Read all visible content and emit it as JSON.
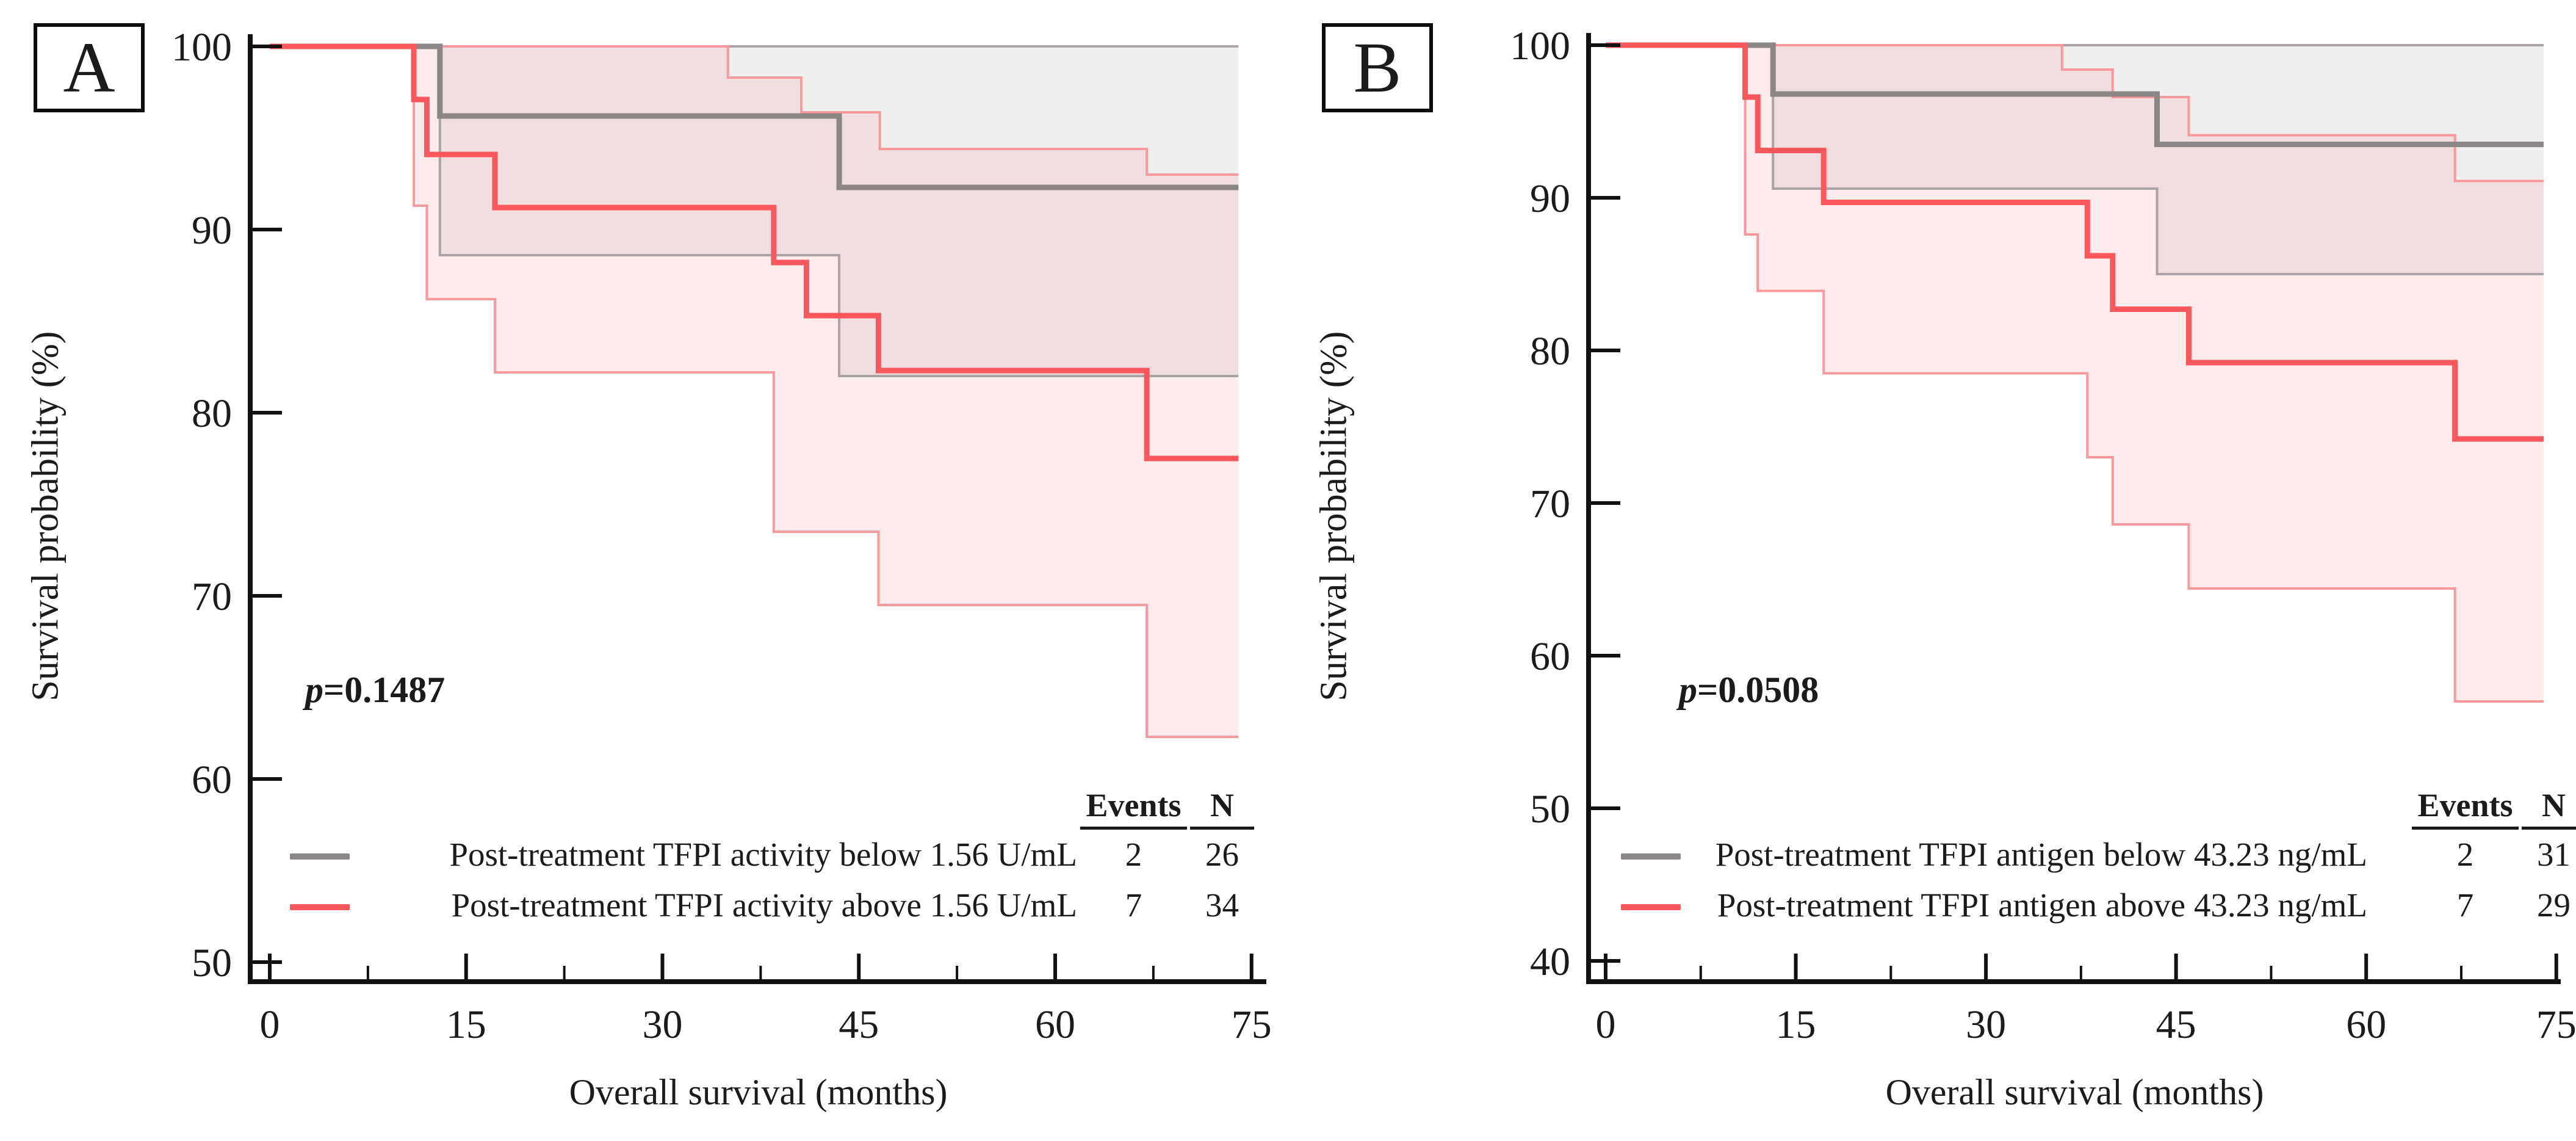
{
  "ui": {
    "legend_events_header": "Events",
    "legend_n_header": "N"
  },
  "chart_data": [
    {
      "type": "line",
      "subtype": "kaplan-meier-step",
      "panel_letter": "A",
      "xlabel": "Overall survival (months)",
      "ylabel": "Survival probability (%)",
      "p_italic": "p",
      "p_rest": "=0.1487",
      "xlim": [
        0,
        75
      ],
      "ylim": [
        50,
        100
      ],
      "x_ticks": [
        0,
        15,
        30,
        45,
        60,
        75
      ],
      "y_ticks": [
        100,
        90,
        80,
        70,
        60,
        50
      ],
      "grid": false,
      "legend_position": "inside-bottom-right",
      "series": [
        {
          "name": "below-threshold",
          "label": "Post-treatment TFPI activity below 1.56 U/mL",
          "events": "2",
          "n": "26",
          "color": "#8c8687",
          "ci_edge_color": "#aba4a6",
          "ci_fill": "rgba(145,145,150,0.14)",
          "steps": [
            [
              0,
              100
            ],
            [
              13,
              96.2
            ],
            [
              43.5,
              92.3
            ],
            [
              74,
              92.3
            ]
          ],
          "ci_upper": [
            [
              0,
              100
            ],
            [
              74,
              100
            ]
          ],
          "ci_lower": [
            [
              0,
              100
            ],
            [
              13,
              88.6
            ],
            [
              43.5,
              82.0
            ],
            [
              74,
              82.0
            ]
          ]
        },
        {
          "name": "above-threshold",
          "label": "Post-treatment TFPI activity above 1.56 U/mL",
          "events": "7",
          "n": "34",
          "color": "#f8575c",
          "ci_edge_color": "#f9999d",
          "ci_fill": "rgba(246,130,134,0.16)",
          "steps": [
            [
              0,
              100
            ],
            [
              11,
              97.1
            ],
            [
              12,
              94.1
            ],
            [
              17.2,
              91.2
            ],
            [
              38.5,
              88.2
            ],
            [
              41,
              85.3
            ],
            [
              46.5,
              82.3
            ],
            [
              67,
              77.5
            ],
            [
              74,
              77.5
            ]
          ],
          "ci_upper": [
            [
              0,
              100
            ],
            [
              35,
              98.3
            ],
            [
              40.6,
              96.4
            ],
            [
              46.6,
              94.4
            ],
            [
              67,
              93.0
            ],
            [
              74,
              93.0
            ]
          ],
          "ci_lower": [
            [
              0,
              100
            ],
            [
              11,
              91.3
            ],
            [
              12,
              86.2
            ],
            [
              17.2,
              82.2
            ],
            [
              38.5,
              73.5
            ],
            [
              46.5,
              69.5
            ],
            [
              67,
              62.3
            ],
            [
              74,
              62.3
            ]
          ]
        }
      ]
    },
    {
      "type": "line",
      "subtype": "kaplan-meier-step",
      "panel_letter": "B",
      "xlabel": "Overall survival (months)",
      "ylabel": "Survival probability (%)",
      "p_italic": "p",
      "p_rest": "=0.0508",
      "xlim": [
        0,
        75
      ],
      "ylim": [
        40,
        100
      ],
      "x_ticks": [
        0,
        15,
        30,
        45,
        60,
        75
      ],
      "y_ticks": [
        100,
        90,
        80,
        70,
        60,
        50,
        40
      ],
      "grid": false,
      "legend_position": "inside-bottom-right",
      "series": [
        {
          "name": "below-threshold",
          "label": "Post-treatment TFPI antigen below 43.23 ng/mL",
          "events": "2",
          "n": "31",
          "color": "#8c8687",
          "ci_edge_color": "#aba4a6",
          "ci_fill": "rgba(145,145,150,0.14)",
          "steps": [
            [
              0,
              100
            ],
            [
              13.2,
              96.8
            ],
            [
              43.5,
              93.5
            ],
            [
              74,
              93.5
            ]
          ],
          "ci_upper": [
            [
              0,
              100
            ],
            [
              74,
              100
            ]
          ],
          "ci_lower": [
            [
              0,
              100
            ],
            [
              13.2,
              90.6
            ],
            [
              43.5,
              85.0
            ],
            [
              74,
              85.0
            ]
          ]
        },
        {
          "name": "above-threshold",
          "label": "Post-treatment TFPI antigen above 43.23 ng/mL",
          "events": "7",
          "n": "29",
          "color": "#f8575c",
          "ci_edge_color": "#f9999d",
          "ci_fill": "rgba(246,130,134,0.16)",
          "steps": [
            [
              0,
              100
            ],
            [
              11,
              96.6
            ],
            [
              12,
              93.1
            ],
            [
              17.2,
              89.7
            ],
            [
              38,
              86.2
            ],
            [
              40,
              82.7
            ],
            [
              46,
              79.2
            ],
            [
              67,
              74.2
            ],
            [
              74,
              74.2
            ]
          ],
          "ci_upper": [
            [
              0,
              100
            ],
            [
              36,
              98.4
            ],
            [
              40,
              96.6
            ],
            [
              46,
              94.1
            ],
            [
              67,
              91.1
            ],
            [
              74,
              91.1
            ]
          ],
          "ci_lower": [
            [
              0,
              100
            ],
            [
              11,
              87.6
            ],
            [
              12,
              83.9
            ],
            [
              17.2,
              78.5
            ],
            [
              38,
              73.0
            ],
            [
              40,
              68.6
            ],
            [
              46,
              64.4
            ],
            [
              67,
              57.0
            ],
            [
              74,
              57.0
            ]
          ]
        }
      ]
    }
  ]
}
